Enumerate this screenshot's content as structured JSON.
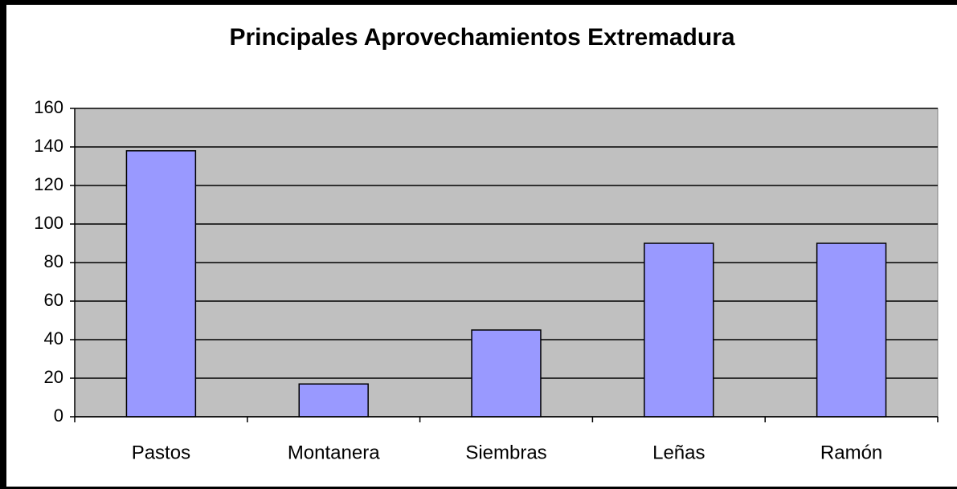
{
  "chart_data": {
    "type": "bar",
    "title": "Principales Aprovechamientos Extremadura",
    "categories": [
      "Pastos",
      "Montanera",
      "Siembras",
      "Leñas",
      "Ramón"
    ],
    "values": [
      138,
      17,
      45,
      90,
      90
    ],
    "color": "#9999ff",
    "ylim": [
      0,
      160
    ],
    "yticks": [
      0,
      20,
      40,
      60,
      80,
      100,
      120,
      140,
      160
    ],
    "grid": true
  }
}
